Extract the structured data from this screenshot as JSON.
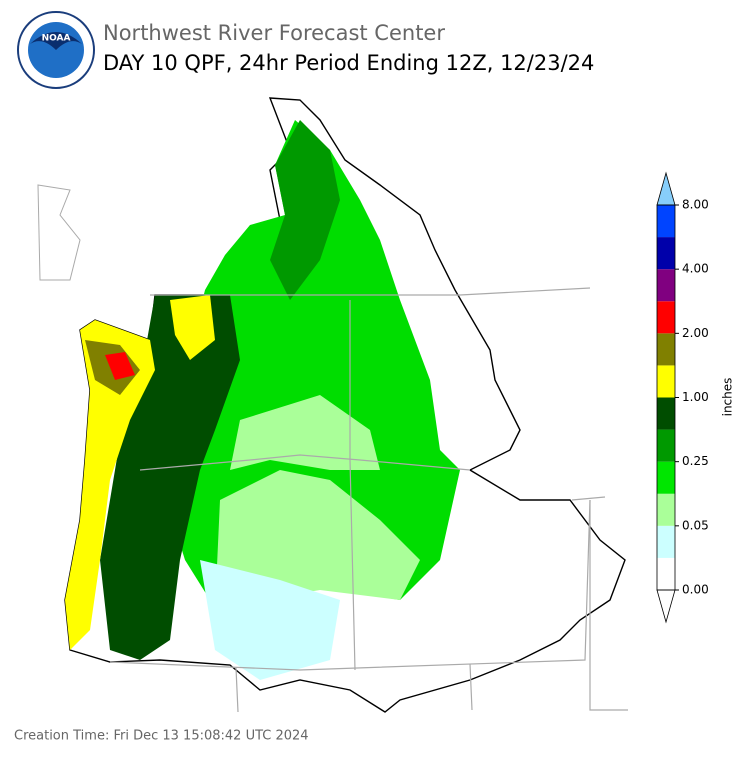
{
  "header": {
    "title": "Northwest River Forecast Center",
    "subtitle": "DAY 10 QPF, 24hr Period Ending 12Z, 12/23/24"
  },
  "colorbar": {
    "label": "inches",
    "colors": [
      "#ffffff",
      "#ccffff",
      "#aaff99",
      "#00e600",
      "#009900",
      "#004d00",
      "#ffff00",
      "#808000",
      "#ff0000",
      "#800080",
      "#0000aa",
      "#0044ff"
    ],
    "under_color": "#ffffff",
    "over_color": "#87cefa",
    "ticks": [
      {
        "value": 0,
        "label": "0.00"
      },
      {
        "value": 0.05,
        "label": "0.05"
      },
      {
        "value": 0.25,
        "label": "0.25"
      },
      {
        "value": 1,
        "label": "1.00"
      },
      {
        "value": 2,
        "label": "2.00"
      },
      {
        "value": 4,
        "label": "4.00"
      },
      {
        "value": 8,
        "label": "8.00"
      }
    ]
  },
  "footer": {
    "creation_time": "Creation Time: Fri Dec 13 15:08:42 UTC 2024"
  }
}
